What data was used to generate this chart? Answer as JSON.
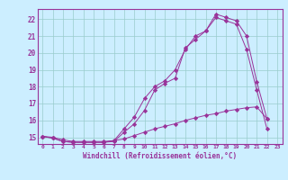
{
  "title": "",
  "xlabel": "Windchill (Refroidissement éolien,°C)",
  "bg_color": "#cceeff",
  "grid_color": "#99cccc",
  "line_color": "#993399",
  "xlim": [
    -0.5,
    23.5
  ],
  "ylim": [
    14.6,
    22.6
  ],
  "xticks": [
    0,
    1,
    2,
    3,
    4,
    5,
    6,
    7,
    8,
    9,
    10,
    11,
    12,
    13,
    14,
    15,
    16,
    17,
    18,
    19,
    20,
    21,
    22,
    23
  ],
  "yticks": [
    15,
    16,
    17,
    18,
    19,
    20,
    21,
    22
  ],
  "line1_x": [
    0,
    1,
    2,
    3,
    4,
    5,
    6,
    7,
    8,
    9,
    10,
    11,
    12,
    13,
    14,
    15,
    16,
    17,
    18,
    19,
    20,
    21,
    22
  ],
  "line1_y": [
    15.05,
    14.95,
    14.75,
    14.7,
    14.7,
    14.7,
    14.7,
    14.75,
    15.3,
    15.8,
    16.6,
    17.8,
    18.2,
    18.5,
    20.3,
    20.8,
    21.3,
    22.3,
    22.1,
    21.9,
    21.0,
    18.3,
    16.1
  ],
  "line2_x": [
    0,
    1,
    2,
    3,
    4,
    5,
    6,
    7,
    8,
    9,
    10,
    11,
    12,
    13,
    14,
    15,
    16,
    17,
    18,
    19,
    20,
    21,
    22
  ],
  "line2_y": [
    15.05,
    14.95,
    14.75,
    14.7,
    14.7,
    14.7,
    14.7,
    14.8,
    15.5,
    16.2,
    17.3,
    18.0,
    18.35,
    19.0,
    20.2,
    21.0,
    21.3,
    22.1,
    21.9,
    21.7,
    20.2,
    17.8,
    15.5
  ],
  "line3_x": [
    0,
    1,
    2,
    3,
    4,
    5,
    6,
    7,
    8,
    9,
    10,
    11,
    12,
    13,
    14,
    15,
    16,
    17,
    18,
    19,
    20,
    21,
    22
  ],
  "line3_y": [
    15.05,
    15.0,
    14.85,
    14.75,
    14.75,
    14.75,
    14.75,
    14.8,
    14.9,
    15.1,
    15.3,
    15.5,
    15.65,
    15.8,
    16.0,
    16.15,
    16.3,
    16.4,
    16.55,
    16.65,
    16.75,
    16.8,
    16.1
  ]
}
